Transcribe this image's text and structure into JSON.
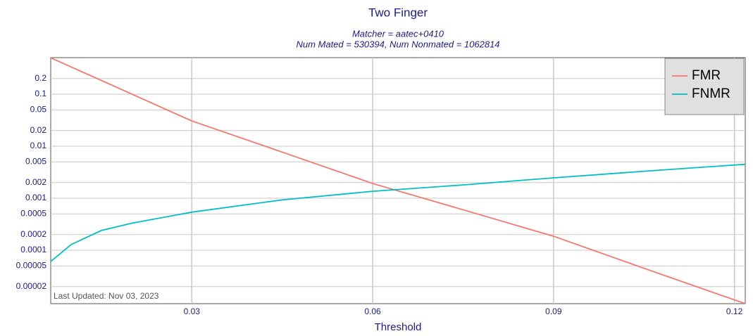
{
  "chart_data": {
    "type": "line",
    "title": "Two Finger",
    "subtitle": [
      "Matcher = aatec+0410",
      "Num Mated = 530394, Num Nonmated = 1062814"
    ],
    "annotation": "Last Updated: Nov 03, 2023",
    "x_label": "Threshold",
    "x": [
      0.0066,
      0.01,
      0.015,
      0.02,
      0.03,
      0.045,
      0.06,
      0.075,
      0.09,
      0.105,
      0.1218
    ],
    "series": [
      {
        "name": "FMR",
        "color": "#f8766d",
        "values": [
          0.5,
          0.334,
          0.184,
          0.101,
          0.0306,
          0.0077,
          0.00192,
          0.0006,
          0.000186,
          4.5e-05,
          9.4e-06
        ]
      },
      {
        "name": "FNMR",
        "color": "#00bfc4",
        "values": [
          6.1e-05,
          0.000129,
          0.00024,
          0.00033,
          0.00054,
          0.00093,
          0.00136,
          0.0018,
          0.00247,
          0.0033,
          0.0045
        ]
      }
    ],
    "xlim": [
      0.0066,
      0.1218
    ],
    "xticks": [
      0.03,
      0.06,
      0.09,
      0.12
    ],
    "ylim": [
      9.4e-06,
      0.505
    ],
    "yticks": [
      0.2,
      0.1,
      0.05,
      0.02,
      0.01,
      0.005,
      0.002,
      0.001,
      0.0005,
      0.0002,
      0.0001,
      5e-05,
      2e-05
    ],
    "ylog": true,
    "grid": true,
    "legend": "top-right"
  }
}
